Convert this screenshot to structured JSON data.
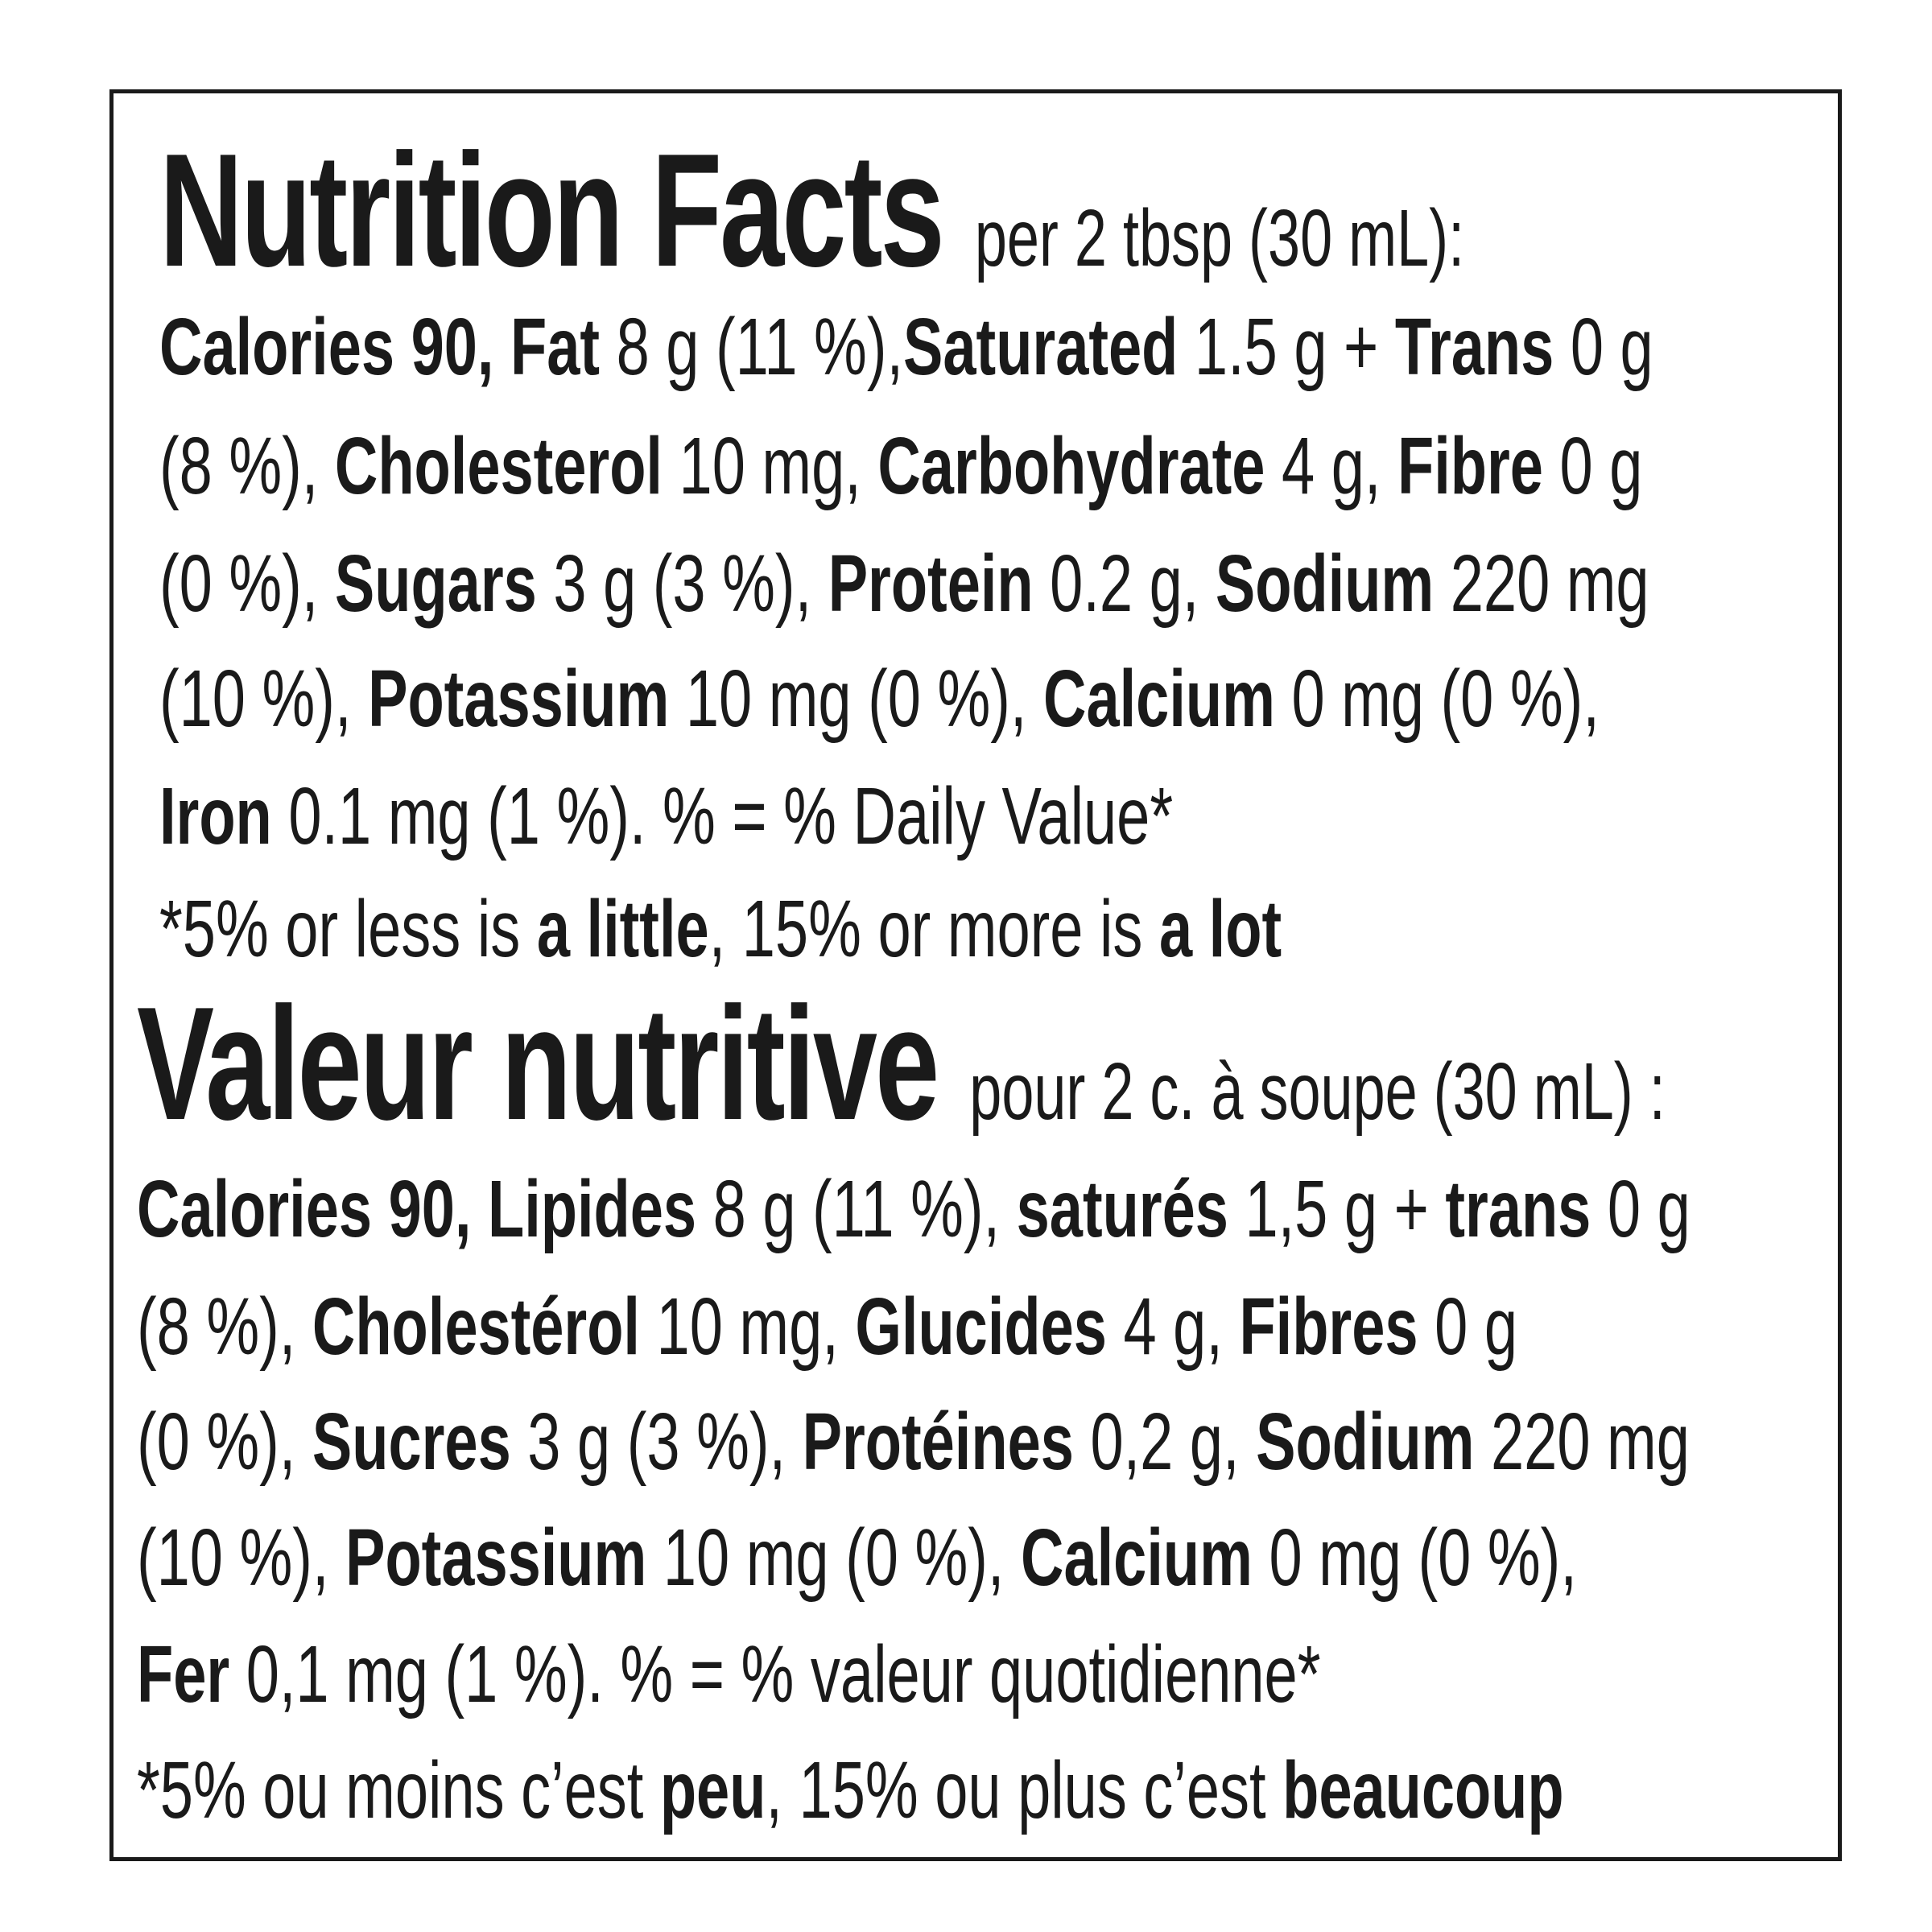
{
  "english": {
    "title": "Nutrition Facts",
    "serving": "per 2 tbsp (30 mL):",
    "lines": [
      [
        {
          "text": "Calories 90, Fat ",
          "bold": true
        },
        {
          "text": "8 g (11 %),",
          "bold": false
        },
        {
          "text": "Saturated ",
          "bold": true
        },
        {
          "text": "1.5 g + ",
          "bold": false
        },
        {
          "text": "Trans ",
          "bold": true
        },
        {
          "text": "0 g",
          "bold": false
        }
      ],
      [
        {
          "text": "(8 %), ",
          "bold": false
        },
        {
          "text": "Cholesterol ",
          "bold": true
        },
        {
          "text": "10 mg, ",
          "bold": false
        },
        {
          "text": "Carbohydrate ",
          "bold": true
        },
        {
          "text": "4 g, ",
          "bold": false
        },
        {
          "text": "Fibre ",
          "bold": true
        },
        {
          "text": "0 g",
          "bold": false
        }
      ],
      [
        {
          "text": "(0 %), ",
          "bold": false
        },
        {
          "text": "Sugars ",
          "bold": true
        },
        {
          "text": "3 g (3 %), ",
          "bold": false
        },
        {
          "text": "Protein ",
          "bold": true
        },
        {
          "text": "0.2 g, ",
          "bold": false
        },
        {
          "text": "Sodium ",
          "bold": true
        },
        {
          "text": "220 mg",
          "bold": false
        }
      ],
      [
        {
          "text": "(10 %), ",
          "bold": false
        },
        {
          "text": "Potassium ",
          "bold": true
        },
        {
          "text": "10 mg (0 %), ",
          "bold": false
        },
        {
          "text": "Calcium ",
          "bold": true
        },
        {
          "text": "0 mg (0 %),",
          "bold": false
        }
      ],
      [
        {
          "text": "Iron ",
          "bold": true
        },
        {
          "text": "0.1 mg (1 %). % = % Daily Value*",
          "bold": false
        }
      ],
      [
        {
          "text": "*5% or less is ",
          "bold": false
        },
        {
          "text": "a little",
          "bold": true
        },
        {
          "text": ", 15% or more is ",
          "bold": false
        },
        {
          "text": "a lot",
          "bold": true
        }
      ]
    ]
  },
  "french": {
    "title": "Valeur nutritive",
    "serving": "pour 2 c. à soupe (30 mL) :",
    "lines": [
      [
        {
          "text": "Calories 90, Lipides ",
          "bold": true
        },
        {
          "text": "8 g (11 %), ",
          "bold": false
        },
        {
          "text": "saturés ",
          "bold": true
        },
        {
          "text": "1,5 g + ",
          "bold": false
        },
        {
          "text": "trans ",
          "bold": true
        },
        {
          "text": "0 g",
          "bold": false
        }
      ],
      [
        {
          "text": "(8 %), ",
          "bold": false
        },
        {
          "text": "Cholestérol ",
          "bold": true
        },
        {
          "text": "10 mg, ",
          "bold": false
        },
        {
          "text": "Glucides ",
          "bold": true
        },
        {
          "text": "4 g, ",
          "bold": false
        },
        {
          "text": "Fibres ",
          "bold": true
        },
        {
          "text": "0 g",
          "bold": false
        }
      ],
      [
        {
          "text": "(0 %), ",
          "bold": false
        },
        {
          "text": "Sucres ",
          "bold": true
        },
        {
          "text": "3 g (3 %), ",
          "bold": false
        },
        {
          "text": "Protéines ",
          "bold": true
        },
        {
          "text": "0,2 g, ",
          "bold": false
        },
        {
          "text": "Sodium ",
          "bold": true
        },
        {
          "text": "220 mg",
          "bold": false
        }
      ],
      [
        {
          "text": "(10 %), ",
          "bold": false
        },
        {
          "text": "Potassium ",
          "bold": true
        },
        {
          "text": "10 mg (0 %), ",
          "bold": false
        },
        {
          "text": "Calcium ",
          "bold": true
        },
        {
          "text": "0 mg (0 %),",
          "bold": false
        }
      ],
      [
        {
          "text": "Fer ",
          "bold": true
        },
        {
          "text": "0,1 mg (1 %). % = % valeur quotidienne*",
          "bold": false
        }
      ],
      [
        {
          "text": "*5% ou moins c’est ",
          "bold": false
        },
        {
          "text": "peu",
          "bold": true
        },
        {
          "text": ", 15% ou plus c’est ",
          "bold": false
        },
        {
          "text": "beaucoup",
          "bold": true
        }
      ]
    ]
  }
}
